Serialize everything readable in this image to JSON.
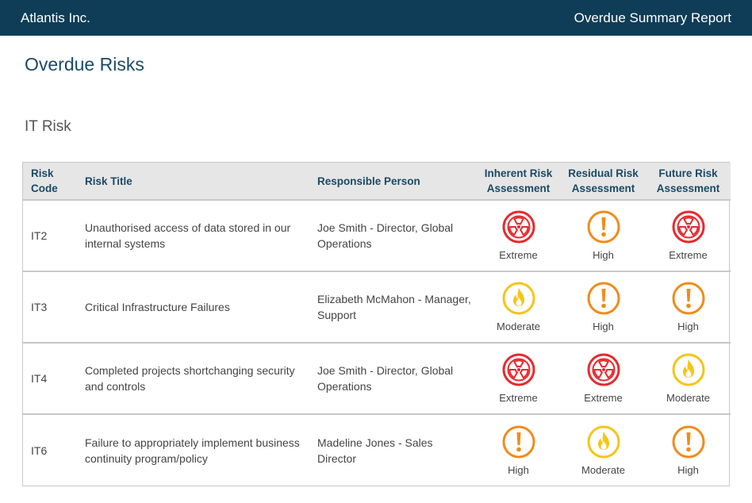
{
  "header": {
    "company": "Atlantis Inc.",
    "report_title": "Overdue Summary Report"
  },
  "page": {
    "title": "Overdue Risks",
    "section": "IT Risk"
  },
  "table": {
    "columns": {
      "code": "Risk Code",
      "title": "Risk Title",
      "person": "Responsible Person",
      "inherent": "Inherent Risk Assessment",
      "residual": "Residual Risk Assessment",
      "future": "Future Risk Assessment"
    },
    "rows": [
      {
        "code": "IT2",
        "title": "Unauthorised access of data stored in our internal systems",
        "person": "Joe Smith - Director, Global Operations",
        "inherent": "Extreme",
        "residual": "High",
        "future": "Extreme"
      },
      {
        "code": "IT3",
        "title": "Critical Infrastructure Failures",
        "person": "Elizabeth McMahon - Manager, Support",
        "inherent": "Moderate",
        "residual": "High",
        "future": "High"
      },
      {
        "code": "IT4",
        "title": "Completed projects shortchanging security and controls",
        "person": "Joe Smith - Director, Global Operations",
        "inherent": "Extreme",
        "residual": "Extreme",
        "future": "Moderate"
      },
      {
        "code": "IT6",
        "title": "Failure to appropriately implement business continuity program/policy",
        "person": "Madeline Jones - Sales Director",
        "inherent": "High",
        "residual": "Moderate",
        "future": "High"
      }
    ]
  },
  "rating_styles": {
    "Extreme": {
      "icon": "radiation-icon",
      "color": "#e8292f"
    },
    "High": {
      "icon": "exclamation-icon",
      "color": "#f08c1a"
    },
    "Moderate": {
      "icon": "flame-icon",
      "color": "#f5c518"
    }
  },
  "colors": {
    "header_bg": "#0f3d57",
    "heading_text": "#1a4a66",
    "table_header_bg": "#e6e6e6"
  }
}
